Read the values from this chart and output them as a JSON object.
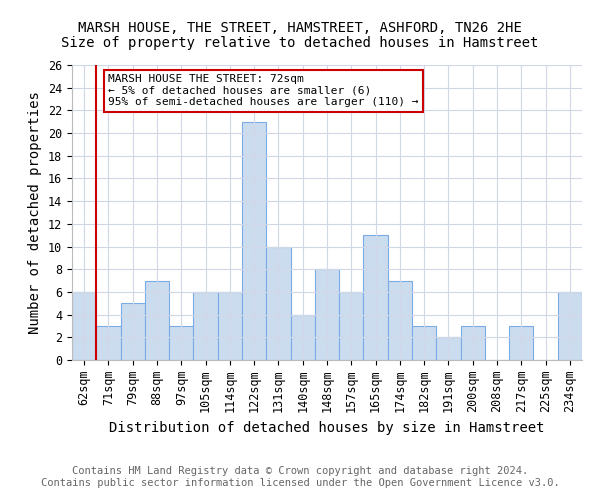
{
  "title": "MARSH HOUSE, THE STREET, HAMSTREET, ASHFORD, TN26 2HE",
  "subtitle": "Size of property relative to detached houses in Hamstreet",
  "xlabel": "Distribution of detached houses by size in Hamstreet",
  "ylabel": "Number of detached properties",
  "footer_line1": "Contains HM Land Registry data © Crown copyright and database right 2024.",
  "footer_line2": "Contains public sector information licensed under the Open Government Licence v3.0.",
  "categories": [
    "62sqm",
    "71sqm",
    "79sqm",
    "88sqm",
    "97sqm",
    "105sqm",
    "114sqm",
    "122sqm",
    "131sqm",
    "140sqm",
    "148sqm",
    "157sqm",
    "165sqm",
    "174sqm",
    "182sqm",
    "191sqm",
    "200sqm",
    "208sqm",
    "217sqm",
    "225sqm",
    "234sqm"
  ],
  "values": [
    6,
    3,
    5,
    7,
    3,
    6,
    6,
    21,
    10,
    4,
    8,
    6,
    11,
    7,
    3,
    2,
    3,
    0,
    3,
    0,
    6
  ],
  "bar_color": "#ccdcef",
  "bar_edge_color": "#7aace4",
  "marker_color": "#cc0000",
  "annotation_text_line1": "MARSH HOUSE THE STREET: 72sqm",
  "annotation_text_line2": "← 5% of detached houses are smaller (6)",
  "annotation_text_line3": "95% of semi-detached houses are larger (110) →",
  "annotation_box_color": "#cc0000",
  "ylim": [
    0,
    26
  ],
  "yticks": [
    0,
    2,
    4,
    6,
    8,
    10,
    12,
    14,
    16,
    18,
    20,
    22,
    24,
    26
  ],
  "bg_color": "#ffffff",
  "grid_color": "#d0d8e8",
  "title_fontsize": 10,
  "subtitle_fontsize": 10,
  "axis_label_fontsize": 10,
  "tick_fontsize": 8.5,
  "annotation_fontsize": 8,
  "footer_fontsize": 7.5
}
